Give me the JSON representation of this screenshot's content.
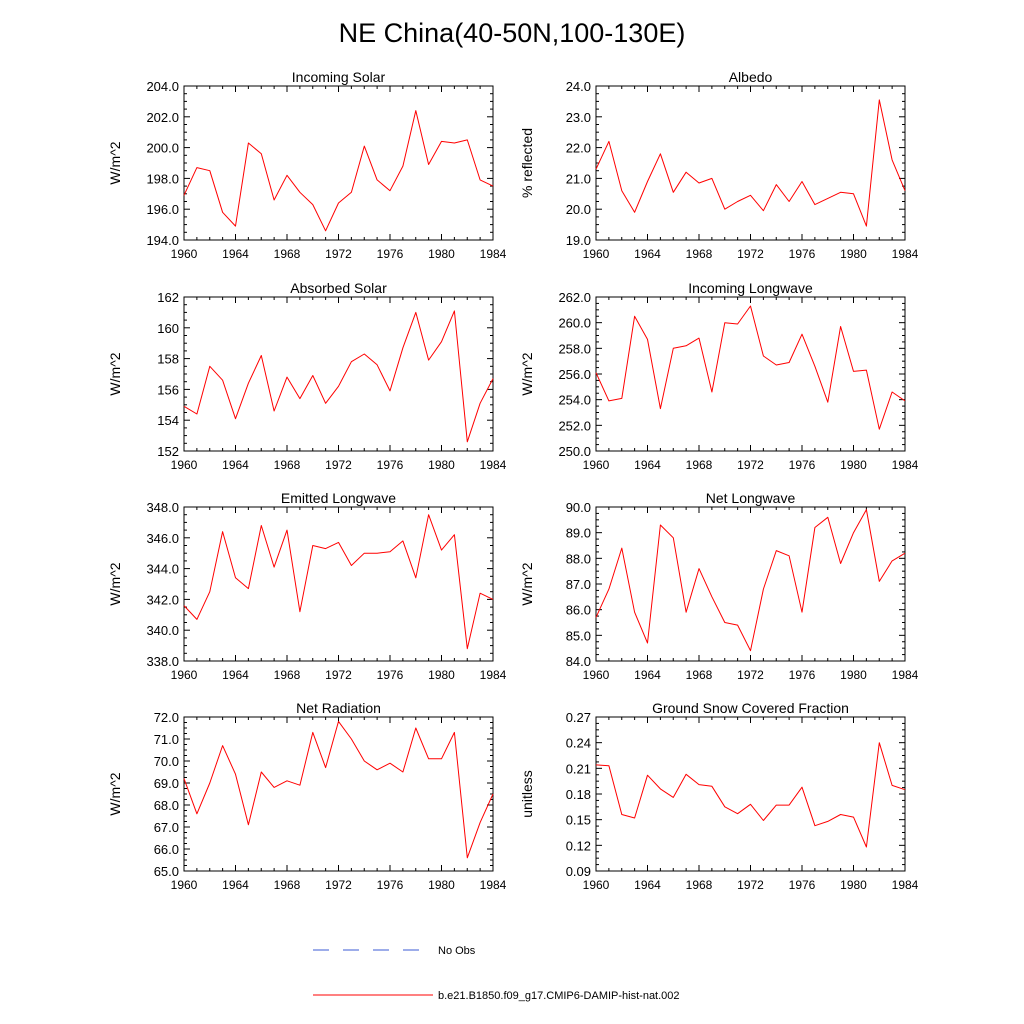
{
  "figure": {
    "title": "NE China(40-50N,100-130E)",
    "legend": [
      {
        "label": "No Obs",
        "color": "#3b5bd6",
        "style": "dashed"
      },
      {
        "label": "b.e21.B1850.f09_g17.CMIP6-DAMIP-hist-nat.002",
        "color": "#ff0000",
        "style": "solid"
      }
    ],
    "line_color": "#ff0000"
  },
  "chart_data": [
    {
      "type": "line",
      "title": "Incoming Solar",
      "ylabel": "W/m^2",
      "x": [
        1960,
        1961,
        1962,
        1963,
        1964,
        1965,
        1966,
        1967,
        1968,
        1969,
        1970,
        1971,
        1972,
        1973,
        1974,
        1975,
        1976,
        1977,
        1978,
        1979,
        1980,
        1981,
        1982,
        1983,
        1984
      ],
      "xlim": [
        1960,
        1984
      ],
      "xticks": [
        "1960",
        "1964",
        "1968",
        "1972",
        "1976",
        "1980",
        "1984"
      ],
      "ylim": [
        194,
        204
      ],
      "yticks": [
        "194.0",
        "196.0",
        "198.0",
        "200.0",
        "202.0",
        "204.0"
      ],
      "series": [
        {
          "values": [
            196.9,
            198.7,
            198.5,
            195.8,
            194.9,
            200.3,
            199.6,
            196.6,
            198.2,
            197.1,
            196.3,
            194.6,
            196.4,
            197.1,
            200.1,
            197.9,
            197.2,
            198.8,
            202.4,
            198.9,
            200.4,
            200.3,
            200.5,
            197.9,
            197.5
          ]
        }
      ]
    },
    {
      "type": "line",
      "title": "Albedo",
      "ylabel": "% reflected",
      "x": [
        1960,
        1961,
        1962,
        1963,
        1964,
        1965,
        1966,
        1967,
        1968,
        1969,
        1970,
        1971,
        1972,
        1973,
        1974,
        1975,
        1976,
        1977,
        1978,
        1979,
        1980,
        1981,
        1982,
        1983,
        1984
      ],
      "xlim": [
        1960,
        1984
      ],
      "xticks": [
        "1960",
        "1964",
        "1968",
        "1972",
        "1976",
        "1980",
        "1984"
      ],
      "ylim": [
        19,
        24
      ],
      "yticks": [
        "19.0",
        "20.0",
        "21.0",
        "22.0",
        "23.0",
        "24.0"
      ],
      "series": [
        {
          "values": [
            21.3,
            22.2,
            20.6,
            19.9,
            20.9,
            21.8,
            20.55,
            21.2,
            20.85,
            21.0,
            20.0,
            20.25,
            20.45,
            19.95,
            20.8,
            20.25,
            20.9,
            20.15,
            20.35,
            20.55,
            20.5,
            19.45,
            23.55,
            21.6,
            20.6
          ]
        }
      ]
    },
    {
      "type": "line",
      "title": "Absorbed Solar",
      "ylabel": "W/m^2",
      "x": [
        1960,
        1961,
        1962,
        1963,
        1964,
        1965,
        1966,
        1967,
        1968,
        1969,
        1970,
        1971,
        1972,
        1973,
        1974,
        1975,
        1976,
        1977,
        1978,
        1979,
        1980,
        1981,
        1982,
        1983,
        1984
      ],
      "xlim": [
        1960,
        1984
      ],
      "xticks": [
        "1960",
        "1964",
        "1968",
        "1972",
        "1976",
        "1980",
        "1984"
      ],
      "ylim": [
        152,
        162
      ],
      "yticks": [
        "152",
        "154",
        "156",
        "158",
        "160",
        "162"
      ],
      "series": [
        {
          "values": [
            154.9,
            154.4,
            157.5,
            156.6,
            154.1,
            156.4,
            158.2,
            154.6,
            156.8,
            155.4,
            156.9,
            155.1,
            156.2,
            157.8,
            158.3,
            157.6,
            155.9,
            158.7,
            161.0,
            157.9,
            159.1,
            161.1,
            152.6,
            155.1,
            156.7
          ]
        }
      ]
    },
    {
      "type": "line",
      "title": "Incoming Longwave",
      "ylabel": "W/m^2",
      "x": [
        1960,
        1961,
        1962,
        1963,
        1964,
        1965,
        1966,
        1967,
        1968,
        1969,
        1970,
        1971,
        1972,
        1973,
        1974,
        1975,
        1976,
        1977,
        1978,
        1979,
        1980,
        1981,
        1982,
        1983,
        1984
      ],
      "xlim": [
        1960,
        1984
      ],
      "xticks": [
        "1960",
        "1964",
        "1968",
        "1972",
        "1976",
        "1980",
        "1984"
      ],
      "ylim": [
        250,
        262
      ],
      "yticks": [
        "250.0",
        "252.0",
        "254.0",
        "256.0",
        "258.0",
        "260.0",
        "262.0"
      ],
      "series": [
        {
          "values": [
            256.1,
            253.9,
            254.1,
            260.5,
            258.7,
            253.3,
            258.0,
            258.2,
            258.8,
            254.6,
            260.0,
            259.9,
            261.3,
            257.4,
            256.7,
            256.9,
            259.1,
            256.6,
            253.8,
            259.7,
            256.2,
            256.3,
            251.7,
            254.6,
            253.9
          ]
        }
      ]
    },
    {
      "type": "line",
      "title": "Emitted Longwave",
      "ylabel": "W/m^2",
      "x": [
        1960,
        1961,
        1962,
        1963,
        1964,
        1965,
        1966,
        1967,
        1968,
        1969,
        1970,
        1971,
        1972,
        1973,
        1974,
        1975,
        1976,
        1977,
        1978,
        1979,
        1980,
        1981,
        1982,
        1983,
        1984
      ],
      "xlim": [
        1960,
        1984
      ],
      "xticks": [
        "1960",
        "1964",
        "1968",
        "1972",
        "1976",
        "1980",
        "1984"
      ],
      "ylim": [
        338,
        348
      ],
      "yticks": [
        "338.0",
        "340.0",
        "342.0",
        "344.0",
        "346.0",
        "348.0"
      ],
      "series": [
        {
          "values": [
            341.6,
            340.7,
            342.5,
            346.4,
            343.4,
            342.7,
            346.8,
            344.1,
            346.5,
            341.2,
            345.5,
            345.3,
            345.7,
            344.2,
            345.0,
            345.0,
            345.1,
            345.8,
            343.4,
            347.5,
            345.2,
            346.2,
            338.8,
            342.4,
            342.0
          ]
        }
      ]
    },
    {
      "type": "line",
      "title": "Net Longwave",
      "ylabel": "W/m^2",
      "x": [
        1960,
        1961,
        1962,
        1963,
        1964,
        1965,
        1966,
        1967,
        1968,
        1969,
        1970,
        1971,
        1972,
        1973,
        1974,
        1975,
        1976,
        1977,
        1978,
        1979,
        1980,
        1981,
        1982,
        1983,
        1984
      ],
      "xlim": [
        1960,
        1984
      ],
      "xticks": [
        "1960",
        "1964",
        "1968",
        "1972",
        "1976",
        "1980",
        "1984"
      ],
      "ylim": [
        84,
        90
      ],
      "yticks": [
        "84.0",
        "85.0",
        "86.0",
        "87.0",
        "88.0",
        "89.0",
        "90.0"
      ],
      "series": [
        {
          "values": [
            85.7,
            86.8,
            88.4,
            85.9,
            84.7,
            89.3,
            88.8,
            85.9,
            87.6,
            86.5,
            85.5,
            85.4,
            84.4,
            86.8,
            88.3,
            88.1,
            85.9,
            89.2,
            89.6,
            87.8,
            89.0,
            89.9,
            87.1,
            87.9,
            88.2
          ]
        }
      ]
    },
    {
      "type": "line",
      "title": "Net Radiation",
      "ylabel": "W/m^2",
      "x": [
        1960,
        1961,
        1962,
        1963,
        1964,
        1965,
        1966,
        1967,
        1968,
        1969,
        1970,
        1971,
        1972,
        1973,
        1974,
        1975,
        1976,
        1977,
        1978,
        1979,
        1980,
        1981,
        1982,
        1983,
        1984
      ],
      "xlim": [
        1960,
        1984
      ],
      "xticks": [
        "1960",
        "1964",
        "1968",
        "1972",
        "1976",
        "1980",
        "1984"
      ],
      "ylim": [
        65,
        72
      ],
      "yticks": [
        "65.0",
        "66.0",
        "67.0",
        "68.0",
        "69.0",
        "70.0",
        "71.0",
        "72.0"
      ],
      "series": [
        {
          "values": [
            69.2,
            67.6,
            69.0,
            70.7,
            69.4,
            67.1,
            69.5,
            68.8,
            69.1,
            68.9,
            71.3,
            69.7,
            71.8,
            71.0,
            70.0,
            69.6,
            69.9,
            69.5,
            71.5,
            70.1,
            70.1,
            71.3,
            65.6,
            67.2,
            68.5
          ]
        }
      ]
    },
    {
      "type": "line",
      "title": "Ground Snow Covered Fraction",
      "ylabel": "unitless",
      "x": [
        1960,
        1961,
        1962,
        1963,
        1964,
        1965,
        1966,
        1967,
        1968,
        1969,
        1970,
        1971,
        1972,
        1973,
        1974,
        1975,
        1976,
        1977,
        1978,
        1979,
        1980,
        1981,
        1982,
        1983,
        1984
      ],
      "xlim": [
        1960,
        1984
      ],
      "xticks": [
        "1960",
        "1964",
        "1968",
        "1972",
        "1976",
        "1980",
        "1984"
      ],
      "ylim": [
        0.09,
        0.27
      ],
      "yticks": [
        "0.09",
        "0.12",
        "0.15",
        "0.18",
        "0.21",
        "0.24",
        "0.27"
      ],
      "series": [
        {
          "values": [
            0.214,
            0.213,
            0.156,
            0.152,
            0.202,
            0.186,
            0.176,
            0.203,
            0.191,
            0.189,
            0.165,
            0.157,
            0.168,
            0.149,
            0.167,
            0.167,
            0.188,
            0.143,
            0.148,
            0.156,
            0.153,
            0.118,
            0.24,
            0.19,
            0.185
          ]
        }
      ]
    }
  ]
}
